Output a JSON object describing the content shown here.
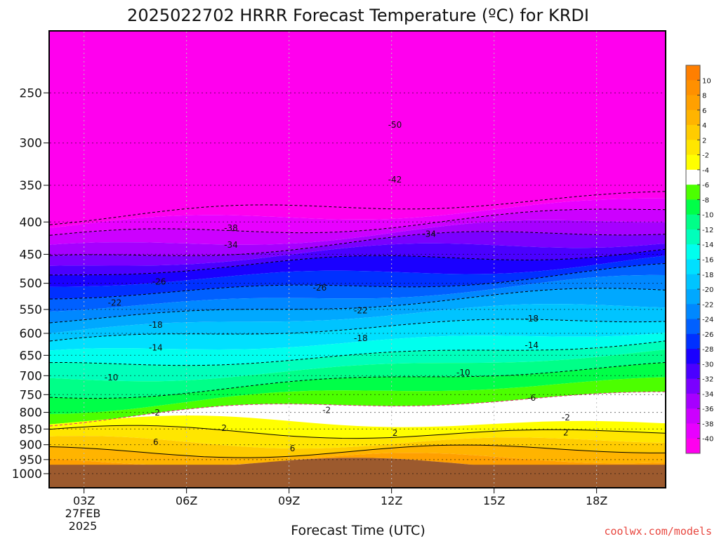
{
  "title": "2025022702 HRRR Forecast Temperature (ºC) for KRDI",
  "xlabel": "Forecast Time (UTC)",
  "credit": "coolwx.com/models",
  "date_label_line1": "27FEB",
  "date_label_line2": "2025",
  "colors": {
    "ground": "#9c5a2e",
    "freezing_line": "#e0247a",
    "contour": "#000000",
    "grid": "#bbbbbb"
  },
  "chart_data": {
    "type": "heatmap",
    "title": "2025022702 HRRR Forecast Temperature (ºC) for KRDI",
    "xlabel": "Forecast Time (UTC)",
    "ylabel": "",
    "x_ticks": [
      "03Z",
      "06Z",
      "09Z",
      "12Z",
      "15Z",
      "18Z"
    ],
    "y_ticks": [
      "250",
      "300",
      "350",
      "400",
      "450",
      "500",
      "550",
      "600",
      "650",
      "700",
      "750",
      "800",
      "850",
      "900",
      "950",
      "1000"
    ],
    "y_axis": "pressure (hPa), log scale, decreasing upward",
    "y_range": [
      1050,
      200
    ],
    "colorbar_labels": [
      "10",
      "8",
      "6",
      "4",
      "2",
      "-2",
      "-4",
      "-6",
      "-8",
      "-10",
      "-12",
      "-14",
      "-16",
      "-18",
      "-20",
      "-22",
      "-24",
      "-26",
      "-28",
      "-30",
      "-32",
      "-34",
      "-36",
      "-38",
      "-40"
    ],
    "colorbar_colors": [
      "#ff7f00",
      "#ff9000",
      "#ffa000",
      "#ffb400",
      "#ffcc00",
      "#ffe600",
      "#ffff00",
      "#ffffff",
      "#4cff00",
      "#00ff48",
      "#00ff88",
      "#00ffbb",
      "#00ffee",
      "#00e0ff",
      "#00c4ff",
      "#00a8ff",
      "#0088ff",
      "#0060ff",
      "#0030ff",
      "#1a00ff",
      "#4a00ff",
      "#7a00ff",
      "#a600ff",
      "#cc00ff",
      "#e800ff",
      "#ff00ee"
    ],
    "contour_labels": [
      {
        "text": "-50",
        "hour": 12.1,
        "p": 281
      },
      {
        "text": "-42",
        "hour": 12.1,
        "p": 343
      },
      {
        "text": "-38",
        "hour": 7.3,
        "p": 409
      },
      {
        "text": "-34",
        "hour": 7.3,
        "p": 435
      },
      {
        "text": "-34",
        "hour": 13.1,
        "p": 418
      },
      {
        "text": "-26",
        "hour": 5.2,
        "p": 497
      },
      {
        "text": "-26",
        "hour": 9.9,
        "p": 508
      },
      {
        "text": "-22",
        "hour": 3.9,
        "p": 537
      },
      {
        "text": "-22",
        "hour": 11.1,
        "p": 552
      },
      {
        "text": "-18",
        "hour": 5.1,
        "p": 582
      },
      {
        "text": "-18",
        "hour": 11.1,
        "p": 611
      },
      {
        "text": "-18",
        "hour": 16.1,
        "p": 569
      },
      {
        "text": "-14",
        "hour": 5.1,
        "p": 632
      },
      {
        "text": "-14",
        "hour": 16.1,
        "p": 627
      },
      {
        "text": "-10",
        "hour": 3.8,
        "p": 705
      },
      {
        "text": "-10",
        "hour": 14.1,
        "p": 692
      },
      {
        "text": "-6",
        "hour": 16.1,
        "p": 759
      },
      {
        "text": "-2",
        "hour": 5.1,
        "p": 801
      },
      {
        "text": "-2",
        "hour": 10.1,
        "p": 794
      },
      {
        "text": "-2",
        "hour": 17.1,
        "p": 815
      },
      {
        "text": "2",
        "hour": 7.1,
        "p": 847
      },
      {
        "text": "2",
        "hour": 12.1,
        "p": 862
      },
      {
        "text": "2",
        "hour": 17.1,
        "p": 861
      },
      {
        "text": "6",
        "hour": 5.1,
        "p": 892
      },
      {
        "text": "6",
        "hour": 9.1,
        "p": 912
      }
    ],
    "bands": [
      {
        "p": 200,
        "color": "#ff00ee"
      },
      {
        "p": 385,
        "color": "#ff00ee"
      },
      {
        "p": 395,
        "color": "#e800ff"
      },
      {
        "p": 410,
        "color": "#cc00ff"
      },
      {
        "p": 425,
        "color": "#a600ff"
      },
      {
        "p": 440,
        "color": "#7a00ff"
      },
      {
        "p": 455,
        "color": "#4a00ff"
      },
      {
        "p": 470,
        "color": "#1a00ff"
      },
      {
        "p": 490,
        "color": "#0030ff"
      },
      {
        "p": 510,
        "color": "#0060ff"
      },
      {
        "p": 530,
        "color": "#0088ff"
      },
      {
        "p": 550,
        "color": "#00a8ff"
      },
      {
        "p": 575,
        "color": "#00c4ff"
      },
      {
        "p": 600,
        "color": "#00e0ff"
      },
      {
        "p": 630,
        "color": "#00ffee"
      },
      {
        "p": 660,
        "color": "#00ffbb"
      },
      {
        "p": 690,
        "color": "#00ff88"
      },
      {
        "p": 725,
        "color": "#00ff48"
      },
      {
        "p": 760,
        "color": "#4cff00"
      },
      {
        "p": 795,
        "color": "#ffffff"
      },
      {
        "p": 830,
        "color": "#ffff00"
      },
      {
        "p": 860,
        "color": "#ffe600"
      },
      {
        "p": 890,
        "color": "#ffcc00"
      },
      {
        "p": 920,
        "color": "#ffb400"
      },
      {
        "p": 950,
        "color": "#ffa000"
      },
      {
        "p": 968,
        "color": "#9c5a2e"
      }
    ],
    "ground_pressure": 968,
    "ylim_bottom": 1050,
    "ylim_top": 200,
    "xlim": [
      2.0,
      20.0
    ]
  }
}
